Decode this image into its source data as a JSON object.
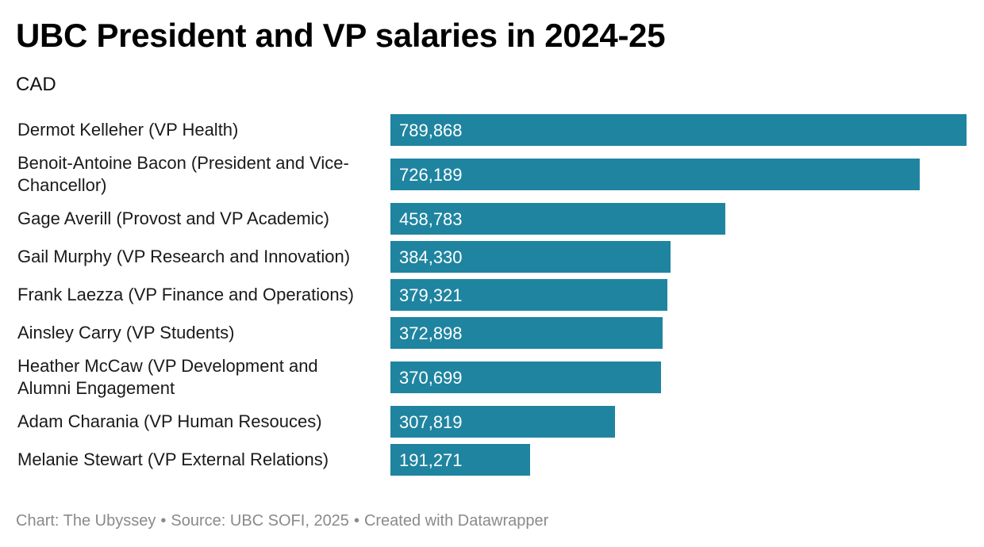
{
  "title": "UBC President and VP salaries in 2024-25",
  "subtitle": "CAD",
  "footer": {
    "chart_credit": "Chart: The Ubyssey",
    "separator": "•",
    "source": "Source: UBC SOFI, 2025",
    "created_with": "Created with Datawrapper"
  },
  "colors": {
    "bar": "#1f84a0",
    "bar_label": "#ffffff",
    "category_label": "#1a1a1a",
    "footer": "#8a8a8a"
  },
  "chart_data": {
    "type": "bar",
    "orientation": "horizontal",
    "title": "UBC President and VP salaries in 2024-25",
    "subtitle": "CAD",
    "xlabel": "",
    "ylabel": "",
    "xlim": [
      0,
      789868
    ],
    "grid": false,
    "legend": "none",
    "categories": [
      [
        "Dermot Kelleher (VP Health)"
      ],
      [
        "Benoit-Antoine Bacon (President and Vice-",
        "Chancellor)"
      ],
      [
        "Gage Averill (Provost and VP Academic)"
      ],
      [
        "Gail Murphy (VP Research and Innovation)"
      ],
      [
        "Frank Laezza (VP Finance and Operations)"
      ],
      [
        "Ainsley Carry (VP Students)"
      ],
      [
        "Heather McCaw (VP Development and",
        "Alumni Engagement"
      ],
      [
        "Adam Charania (VP Human Resouces)"
      ],
      [
        "Melanie Stewart (VP External Relations)"
      ]
    ],
    "values": [
      789868,
      726189,
      458783,
      384330,
      379321,
      372898,
      370699,
      307819,
      191271
    ],
    "value_labels": [
      "789,868",
      "726,189",
      "458,783",
      "384,330",
      "379,321",
      "372,898",
      "370,699",
      "307,819",
      "191,271"
    ]
  }
}
